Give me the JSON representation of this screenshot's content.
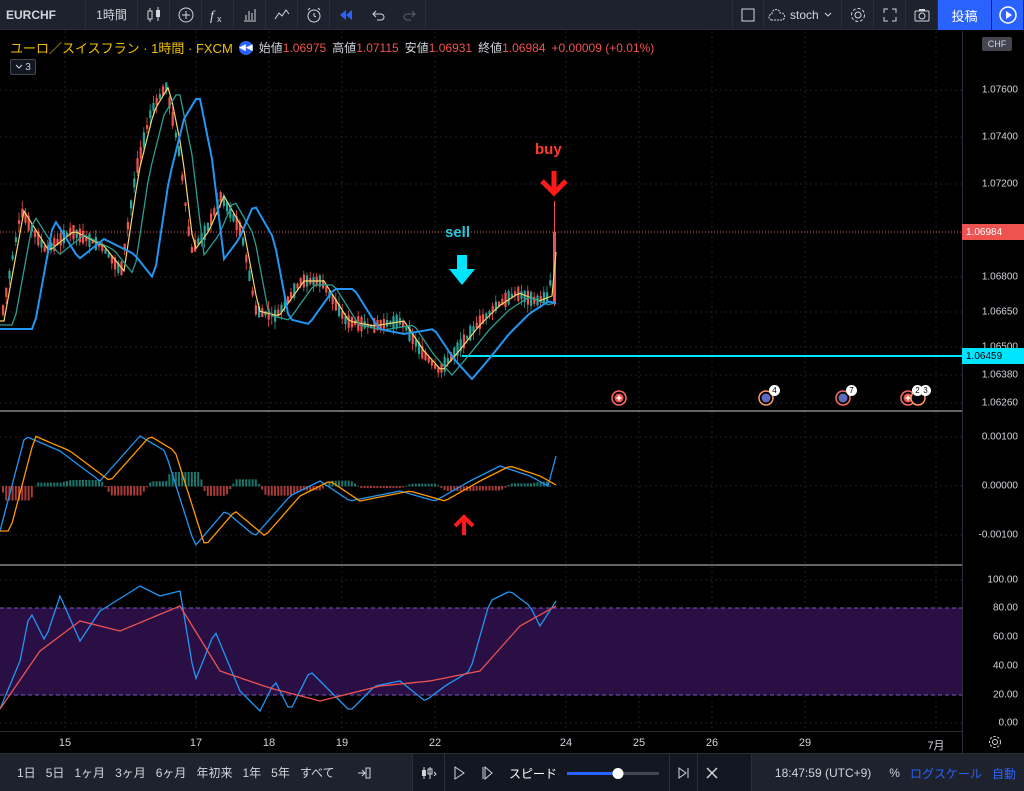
{
  "toolbar": {
    "symbol": "EURCHF",
    "interval": "1時間",
    "layout_name": "stoch",
    "publish_label": "投稿"
  },
  "legend": {
    "title": "ユーロ／スイスフラン · 1時間 · FXCM",
    "open_label": "始値",
    "open_value": "1.06975",
    "high_label": "高値",
    "high_value": "1.07115",
    "low_label": "安値",
    "low_value": "1.06931",
    "close_label": "終値",
    "close_value": "1.06984",
    "change": "+0.00009 (+0.01%)",
    "indicator_count": "3"
  },
  "price_axis": {
    "currency": "CHF",
    "ticks": [
      "1.07600",
      "1.07400",
      "1.07200",
      "1.06800",
      "1.06650",
      "1.06500",
      "1.06380",
      "1.06260"
    ],
    "last_price": "1.06984",
    "line_price": "1.06459",
    "macd_ticks": [
      "0.00100",
      "0.00000",
      "-0.00100"
    ],
    "stoch_ticks": [
      "100.00",
      "80.00",
      "60.00",
      "40.00",
      "20.00",
      "0.00"
    ]
  },
  "time_axis": {
    "labels": [
      "15",
      "17",
      "18",
      "19",
      "22",
      "24",
      "25",
      "26",
      "29",
      "7月"
    ]
  },
  "annotations": {
    "sell": "sell",
    "buy": "buy",
    "event_counts": [
      "4",
      "7",
      "2",
      "3"
    ]
  },
  "bottombar": {
    "ranges": [
      "1日",
      "5日",
      "1ヶ月",
      "3ヶ月",
      "6ヶ月",
      "年初来",
      "1年",
      "5年",
      "すべて"
    ],
    "speed_label": "スピード",
    "speed_level": 0.55,
    "clock": "18:47:59 (UTC+9)",
    "percent_label": "%",
    "log_label": "ログスケール",
    "auto_label": "自動"
  },
  "colors": {
    "up": "#26a69a",
    "down": "#ef5350",
    "accent": "#2962ff",
    "ma_fast": "#f5d76e",
    "ma_mid": "#2a9d8f",
    "ma_slow": "#2196f3",
    "line_level": "#00e5ff",
    "stoch_zone": "#2a0f45"
  },
  "icons": [
    "candles-icon",
    "add-compare-icon",
    "fx-indicators-icon",
    "templates-icon",
    "alert-icon",
    "replay-icon",
    "undo-icon",
    "redo-icon",
    "layout-icon",
    "settings-icon",
    "fullscreen-icon",
    "snapshot-icon",
    "play-icon"
  ]
}
